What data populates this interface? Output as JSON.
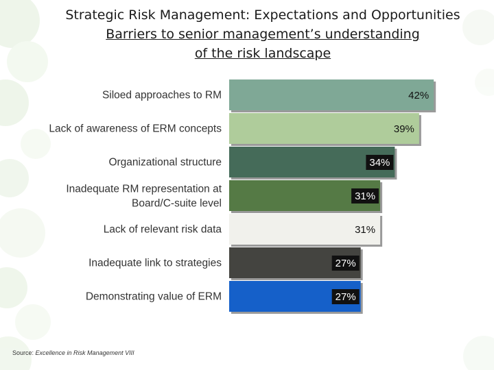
{
  "slide": {
    "title": "Strategic Risk Management: Expectations and Opportunities",
    "subtitle_line1": "Barriers to senior management’s understanding",
    "subtitle_line2": "of the risk landscape",
    "source_prefix": "Source: ",
    "source_title": "Excellence in Risk Management VIII"
  },
  "chart_data": {
    "type": "bar",
    "orientation": "horizontal",
    "title": "Barriers to senior management’s understanding of the risk landscape",
    "xlabel": "",
    "ylabel": "",
    "xlim": [
      0,
      42
    ],
    "grid": false,
    "legend": "none",
    "categories": [
      [
        "Siloed approaches to RM"
      ],
      [
        "Lack of awareness of ERM concepts"
      ],
      [
        "Organizational structure"
      ],
      [
        "Inadequate RM representation at",
        "Board/C-suite level"
      ],
      [
        "Lack of relevant risk data"
      ],
      [
        "Inadequate link to strategies"
      ],
      [
        "Demonstrating value of ERM"
      ]
    ],
    "values": [
      42,
      39,
      34,
      31,
      31,
      27,
      27
    ],
    "value_labels": [
      "42%",
      "39%",
      "34%",
      "31%",
      "31%",
      "27%",
      "27%"
    ],
    "colors": [
      "#7fa896",
      "#afcc9b",
      "#456b59",
      "#557a45",
      "#f1f1ec",
      "#444440",
      "#1560c9"
    ],
    "label_styles": [
      "light",
      "light",
      "dark",
      "dark",
      "light",
      "dark",
      "dark"
    ]
  }
}
